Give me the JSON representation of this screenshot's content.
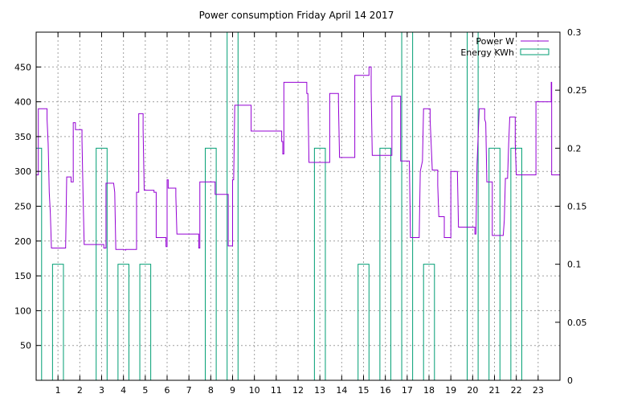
{
  "chart_data": {
    "type": "line",
    "title": "Power consumption Friday April 14 2017",
    "grid": true,
    "legend_position": "top-right",
    "x_axis": {
      "range": [
        0,
        24
      ],
      "ticks": [
        1,
        2,
        3,
        4,
        5,
        6,
        7,
        8,
        9,
        10,
        11,
        12,
        13,
        14,
        15,
        16,
        17,
        18,
        19,
        20,
        21,
        22,
        23
      ]
    },
    "y_axis_left": {
      "range": [
        0,
        500
      ],
      "ticks": [
        50,
        100,
        150,
        200,
        250,
        300,
        350,
        400,
        450
      ]
    },
    "y_axis_right": {
      "range": [
        0,
        0.3
      ],
      "ticks": [
        "0",
        "0.05",
        "0.1",
        "0.15",
        "0.2",
        "0.25",
        "0.3"
      ],
      "tick_values": [
        0,
        0.05,
        0.1,
        0.15,
        0.2,
        0.25,
        0.3
      ]
    },
    "series": [
      {
        "name": "Power W",
        "axis": "left",
        "color": "#9400d3",
        "style": "line",
        "points": [
          [
            0.0,
            295
          ],
          [
            0.1,
            295
          ],
          [
            0.1,
            390
          ],
          [
            0.5,
            390
          ],
          [
            0.5,
            375
          ],
          [
            0.55,
            340
          ],
          [
            0.6,
            270
          ],
          [
            0.65,
            240
          ],
          [
            0.7,
            190
          ],
          [
            1.35,
            190
          ],
          [
            1.4,
            292
          ],
          [
            1.6,
            292
          ],
          [
            1.6,
            285
          ],
          [
            1.7,
            285
          ],
          [
            1.7,
            370
          ],
          [
            1.8,
            370
          ],
          [
            1.8,
            360
          ],
          [
            2.1,
            360
          ],
          [
            2.1,
            345
          ],
          [
            2.15,
            265
          ],
          [
            2.2,
            195
          ],
          [
            3.1,
            195
          ],
          [
            3.1,
            190
          ],
          [
            3.2,
            190
          ],
          [
            3.2,
            283
          ],
          [
            3.55,
            283
          ],
          [
            3.6,
            270
          ],
          [
            3.65,
            188
          ],
          [
            4.0,
            188
          ],
          [
            4.1,
            187
          ],
          [
            4.1,
            188
          ],
          [
            4.6,
            188
          ],
          [
            4.6,
            270
          ],
          [
            4.7,
            270
          ],
          [
            4.7,
            383
          ],
          [
            4.9,
            383
          ],
          [
            4.9,
            360
          ],
          [
            4.95,
            273
          ],
          [
            5.4,
            273
          ],
          [
            5.4,
            270
          ],
          [
            5.5,
            270
          ],
          [
            5.5,
            205
          ],
          [
            5.95,
            205
          ],
          [
            5.95,
            192
          ],
          [
            6.0,
            192
          ],
          [
            6.0,
            288
          ],
          [
            6.05,
            288
          ],
          [
            6.05,
            276
          ],
          [
            6.4,
            276
          ],
          [
            6.4,
            265
          ],
          [
            6.45,
            210
          ],
          [
            7.45,
            210
          ],
          [
            7.45,
            190
          ],
          [
            7.5,
            190
          ],
          [
            7.5,
            285
          ],
          [
            8.2,
            285
          ],
          [
            8.2,
            267
          ],
          [
            8.8,
            267
          ],
          [
            8.8,
            193
          ],
          [
            9.0,
            193
          ],
          [
            9.0,
            288
          ],
          [
            9.05,
            288
          ],
          [
            9.1,
            395
          ],
          [
            9.85,
            395
          ],
          [
            9.85,
            358
          ],
          [
            11.25,
            358
          ],
          [
            11.25,
            343
          ],
          [
            11.3,
            343
          ],
          [
            11.3,
            325
          ],
          [
            11.35,
            325
          ],
          [
            11.35,
            428
          ],
          [
            12.4,
            428
          ],
          [
            12.4,
            412
          ],
          [
            12.45,
            412
          ],
          [
            12.5,
            313
          ],
          [
            13.45,
            313
          ],
          [
            13.45,
            412
          ],
          [
            13.85,
            412
          ],
          [
            13.85,
            400
          ],
          [
            13.9,
            320
          ],
          [
            14.6,
            320
          ],
          [
            14.6,
            438
          ],
          [
            15.25,
            438
          ],
          [
            15.25,
            450
          ],
          [
            15.35,
            450
          ],
          [
            15.35,
            415
          ],
          [
            15.4,
            323
          ],
          [
            16.3,
            323
          ],
          [
            16.3,
            408
          ],
          [
            16.7,
            408
          ],
          [
            16.7,
            315
          ],
          [
            17.1,
            315
          ],
          [
            17.15,
            205
          ],
          [
            17.55,
            205
          ],
          [
            17.6,
            300
          ],
          [
            17.7,
            315
          ],
          [
            17.75,
            390
          ],
          [
            18.05,
            390
          ],
          [
            18.05,
            375
          ],
          [
            18.15,
            302
          ],
          [
            18.4,
            302
          ],
          [
            18.4,
            280
          ],
          [
            18.45,
            235
          ],
          [
            18.7,
            235
          ],
          [
            18.7,
            205
          ],
          [
            19.0,
            205
          ],
          [
            19.0,
            300
          ],
          [
            19.3,
            300
          ],
          [
            19.35,
            220
          ],
          [
            20.1,
            220
          ],
          [
            20.1,
            210
          ],
          [
            20.15,
            210
          ],
          [
            20.2,
            310
          ],
          [
            20.3,
            390
          ],
          [
            20.55,
            390
          ],
          [
            20.55,
            375
          ],
          [
            20.6,
            370
          ],
          [
            20.65,
            285
          ],
          [
            20.9,
            285
          ],
          [
            20.9,
            208
          ],
          [
            21.4,
            208
          ],
          [
            21.45,
            230
          ],
          [
            21.5,
            290
          ],
          [
            21.6,
            290
          ],
          [
            21.65,
            340
          ],
          [
            21.7,
            378
          ],
          [
            21.95,
            378
          ],
          [
            21.95,
            340
          ],
          [
            22.0,
            295
          ],
          [
            22.9,
            295
          ],
          [
            22.9,
            400
          ],
          [
            23.6,
            400
          ],
          [
            23.6,
            428
          ],
          [
            23.62,
            428
          ],
          [
            23.62,
            295
          ],
          [
            24.0,
            295
          ]
        ]
      },
      {
        "name": "Energy KWh",
        "axis": "right",
        "color": "#009e73",
        "style": "impulse-bars",
        "bars": [
          {
            "start": 0.0,
            "end": 0.25,
            "value": 0.2
          },
          {
            "start": 0.75,
            "end": 1.25,
            "value": 0.1
          },
          {
            "start": 2.75,
            "end": 3.25,
            "value": 0.2
          },
          {
            "start": 3.75,
            "end": 4.25,
            "value": 0.1
          },
          {
            "start": 4.75,
            "end": 5.25,
            "value": 0.1
          },
          {
            "start": 7.75,
            "end": 8.25,
            "value": 0.2
          },
          {
            "start": 8.75,
            "end": 9.25,
            "value": 0.3
          },
          {
            "start": 12.75,
            "end": 13.25,
            "value": 0.2
          },
          {
            "start": 14.75,
            "end": 15.25,
            "value": 0.1
          },
          {
            "start": 15.75,
            "end": 16.25,
            "value": 0.2
          },
          {
            "start": 16.75,
            "end": 17.25,
            "value": 0.3
          },
          {
            "start": 17.75,
            "end": 18.25,
            "value": 0.1
          },
          {
            "start": 19.75,
            "end": 20.25,
            "value": 0.3
          },
          {
            "start": 20.75,
            "end": 21.25,
            "value": 0.2
          },
          {
            "start": 21.75,
            "end": 22.25,
            "value": 0.2
          }
        ]
      }
    ]
  }
}
